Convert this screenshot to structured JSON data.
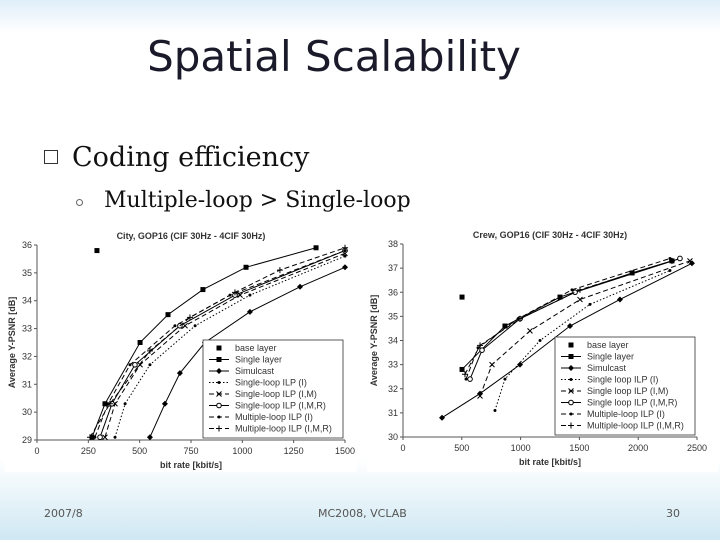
{
  "slide": {
    "title": "Spatial Scalability",
    "bullet": "Coding efficiency",
    "sub_bullet": "Multiple-loop > Single-loop",
    "footer_date": "2007/8",
    "footer_center": "MC2008, VCLAB",
    "page_number": "30"
  },
  "chart_data": [
    {
      "type": "line",
      "title": "City, GOP16 (CIF 30Hz - 4CIF 30Hz)",
      "x_label": "bit rate [kbit/s]",
      "y_label": "Average Y-PSNR [dB]",
      "xlim": [
        0,
        1500
      ],
      "xticks": [
        0,
        250,
        500,
        750,
        1000,
        1250,
        1500
      ],
      "ylim": [
        29,
        36
      ],
      "yticks": [
        29,
        30,
        31,
        32,
        33,
        34,
        35,
        36
      ],
      "grid": false,
      "legend": "lower right",
      "series": [
        {
          "name": "base layer",
          "color": "#000000",
          "marker": "square",
          "dash": "none",
          "x": [
            292
          ],
          "values": [
            35.8
          ]
        },
        {
          "name": "Single layer",
          "color": "#000000",
          "marker": "square",
          "dash": "solid",
          "x": [
            268,
            331,
            502,
            638,
            808,
            1018,
            1359
          ],
          "values": [
            29.1,
            30.3,
            32.5,
            33.5,
            34.4,
            35.2,
            35.9
          ]
        },
        {
          "name": "Simulcast",
          "color": "#000000",
          "marker": "diamond",
          "dash": "solid",
          "x": [
            550,
            623,
            696,
            818,
            1037,
            1281,
            1500
          ],
          "values": [
            29.1,
            30.3,
            31.4,
            32.5,
            33.6,
            34.5,
            35.2
          ]
        },
        {
          "name": "Single-loop ILP (I)",
          "color": "#000000",
          "marker": "dot",
          "dash": "dotted",
          "x": [
            380,
            429,
            550,
            770,
            1037,
            1500
          ],
          "values": [
            29.1,
            30.3,
            31.7,
            33.1,
            34.2,
            35.6
          ]
        },
        {
          "name": "Single-loop ILP (I,M)",
          "color": "#000000",
          "marker": "x",
          "dash": "dashed",
          "x": [
            331,
            380,
            502,
            721,
            989,
            1500
          ],
          "values": [
            29.1,
            30.3,
            31.7,
            33.1,
            34.2,
            35.7
          ]
        },
        {
          "name": "Single-loop ILP (I,M,R)",
          "color": "#000000",
          "marker": "circle",
          "dash": "solid",
          "x": [
            307,
            365,
            477,
            696,
            964,
            1500
          ],
          "values": [
            29.1,
            30.3,
            31.7,
            33.1,
            34.2,
            35.8
          ]
        },
        {
          "name": "Multiple-loop ILP (I)",
          "color": "#000000",
          "marker": "dot",
          "dash": "dashed",
          "x": [
            282,
            346,
            453,
            672,
            940,
            1500
          ],
          "values": [
            29.1,
            30.3,
            31.7,
            33.1,
            34.2,
            35.8
          ]
        },
        {
          "name": "Multiple-loop ILP (I,M,R)",
          "color": "#000000",
          "marker": "plus",
          "dash": "dashed",
          "x": [
            258,
            355,
            550,
            745,
            964,
            1183,
            1500
          ],
          "values": [
            29.1,
            30.3,
            32.2,
            33.4,
            34.3,
            35.1,
            35.9
          ]
        }
      ]
    },
    {
      "type": "line",
      "title": "Crew, GOP16 (CIF 30Hz - 4CIF 30Hz)",
      "x_label": "bit rate [kbit/s]",
      "y_label": "Average Y-PSNR [dB]",
      "xlim": [
        0,
        2500
      ],
      "xticks": [
        0,
        500,
        1000,
        1500,
        2000,
        2500
      ],
      "ylim": [
        30,
        38
      ],
      "yticks": [
        30,
        31,
        32,
        33,
        34,
        35,
        36,
        37,
        38
      ],
      "grid": false,
      "legend": "lower right",
      "series": [
        {
          "name": "base layer",
          "color": "#000000",
          "marker": "square",
          "dash": "none",
          "x": [
            502
          ],
          "values": [
            35.8
          ]
        },
        {
          "name": "Single layer",
          "color": "#000000",
          "marker": "square",
          "dash": "solid",
          "x": [
            502,
            867,
            1335,
            1948,
            2287
          ],
          "values": [
            32.8,
            34.6,
            35.8,
            36.8,
            37.3
          ]
        },
        {
          "name": "Simulcast",
          "color": "#000000",
          "marker": "diamond",
          "dash": "solid",
          "x": [
            332,
            655,
            995,
            1420,
            1845,
            2457
          ],
          "values": [
            30.8,
            31.8,
            33.0,
            34.6,
            35.7,
            37.2
          ]
        },
        {
          "name": "Single loop ILP (I)",
          "color": "#000000",
          "marker": "dot",
          "dash": "dotted",
          "x": [
            782,
            867,
            1165,
            1590,
            2270
          ],
          "values": [
            31.1,
            32.4,
            34.0,
            35.5,
            36.9
          ]
        },
        {
          "name": "Single loop ILP (I,M)",
          "color": "#000000",
          "marker": "x",
          "dash": "dashed",
          "x": [
            655,
            757,
            1080,
            1505,
            2440
          ],
          "values": [
            31.7,
            33.0,
            34.4,
            35.7,
            37.3
          ]
        },
        {
          "name": "Single loop ILP (I,M,R)",
          "color": "#000000",
          "marker": "circle",
          "dash": "solid",
          "x": [
            570,
            672,
            995,
            1463,
            2355
          ],
          "values": [
            32.4,
            33.6,
            34.9,
            36.0,
            37.4
          ]
        },
        {
          "name": "Multiple-loop ILP (I)",
          "color": "#000000",
          "marker": "dot",
          "dash": "dashed",
          "x": [
            536,
            638,
            978,
            1437,
            2270
          ],
          "values": [
            32.4,
            33.7,
            34.9,
            36.1,
            37.4
          ]
        },
        {
          "name": "Multiple-loop ILP (I,M,R)",
          "color": "#000000",
          "marker": "plus",
          "dash": "dashed",
          "x": [
            527,
            655,
            995,
            1505,
            2287
          ],
          "values": [
            32.6,
            33.8,
            34.9,
            36.1,
            37.3
          ]
        }
      ]
    }
  ]
}
